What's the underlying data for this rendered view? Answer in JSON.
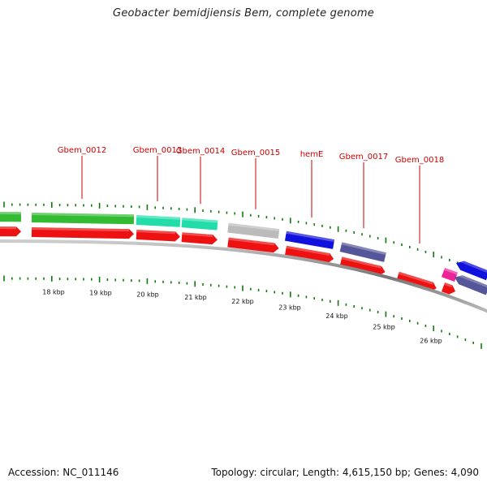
{
  "title": "Geobacter bemidjiensis Bem, complete genome",
  "footer": {
    "accession": "Accession: NC_011146",
    "summary": "Topology: circular; Length: 4,615,150 bp; Genes: 4,090"
  },
  "colors": {
    "cds_forward": "#ee1111",
    "cog_green": "#33bb33",
    "cog_cyan": "#22ddaa",
    "cog_gray": "#bbbbbb",
    "cog_blue": "#1111dd",
    "cog_slate": "#555599",
    "cog_magenta": "#ee2299",
    "tick_green": "#117711",
    "backbone": "#888888",
    "label_red": "#cc0000"
  },
  "scale": {
    "labels": [
      "18 kbp",
      "19 kbp",
      "20 kbp",
      "21 kbp",
      "22 kbp",
      "23 kbp",
      "24 kbp",
      "25 kbp",
      "26 kbp"
    ]
  },
  "genes": [
    {
      "name": "",
      "cog_color": "cog_green"
    },
    {
      "name": "Gbem_0012",
      "cog_color": "cog_green"
    },
    {
      "name": "Gbem_0013",
      "cog_color": "cog_cyan"
    },
    {
      "name": "Gbem_0014",
      "cog_color": "cog_cyan"
    },
    {
      "name": "Gbem_0015",
      "cog_color": "cog_gray"
    },
    {
      "name": "hemE",
      "cog_color": "cog_blue"
    },
    {
      "name": "Gbem_0017",
      "cog_color": "cog_slate"
    },
    {
      "name": "Gbem_0018",
      "cog_color": ""
    },
    {
      "name": "",
      "cog_color": "cog_magenta"
    },
    {
      "name": "",
      "cog_color": "cog_blue",
      "strand": "reverse"
    },
    {
      "name": "",
      "cog_color": "cog_slate",
      "strand": "reverse"
    }
  ]
}
